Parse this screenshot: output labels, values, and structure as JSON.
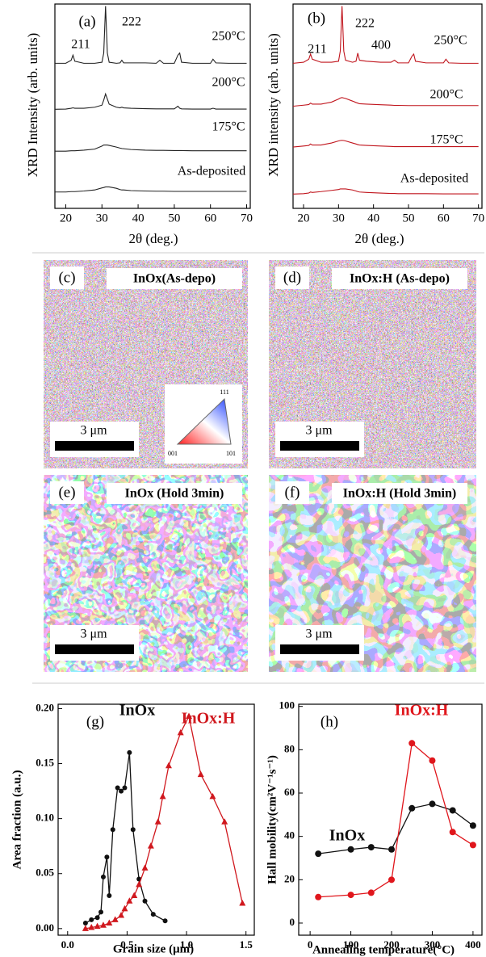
{
  "chart_data": [
    {
      "type": "line",
      "panel_label": "(a)",
      "xlabel": "2θ (deg.)",
      "ylabel": "XRD Intensity (arb. units)",
      "peak_labels": [
        "211",
        "222"
      ],
      "xlim": [
        17,
        71
      ],
      "xticks": [
        20,
        30,
        40,
        50,
        60,
        70
      ],
      "ylim": [
        0,
        10
      ],
      "x": [
        17,
        20,
        21.5,
        22,
        22.5,
        25,
        28,
        30,
        30.5,
        31,
        31.5,
        32,
        34,
        35,
        35.5,
        36,
        38,
        42,
        45,
        46,
        47,
        50,
        51,
        51.5,
        52,
        55,
        60,
        60.7,
        61.5,
        65,
        70
      ],
      "series": [
        {
          "name": "As-deposited",
          "color": "#222222",
          "values": [
            0.8,
            0.8,
            0.82,
            0.82,
            0.82,
            0.85,
            0.9,
            1.0,
            1.02,
            1.05,
            1.05,
            1.05,
            0.98,
            0.92,
            0.9,
            0.9,
            0.87,
            0.85,
            0.84,
            0.84,
            0.84,
            0.83,
            0.83,
            0.83,
            0.83,
            0.83,
            0.83,
            0.83,
            0.83,
            0.83,
            0.83
          ]
        },
        {
          "name": "175°C",
          "color": "#222222",
          "values": [
            2.8,
            2.8,
            2.82,
            2.82,
            2.82,
            2.85,
            2.9,
            3.05,
            3.1,
            3.1,
            3.1,
            3.08,
            3.0,
            2.95,
            2.93,
            2.92,
            2.88,
            2.85,
            2.84,
            2.84,
            2.84,
            2.83,
            2.83,
            2.83,
            2.83,
            2.82,
            2.82,
            2.82,
            2.82,
            2.82,
            2.82
          ]
        },
        {
          "name": "200°C",
          "color": "#222222",
          "values": [
            4.85,
            4.86,
            4.9,
            4.92,
            4.9,
            4.9,
            4.95,
            5.05,
            5.3,
            5.6,
            5.35,
            5.1,
            4.95,
            4.92,
            4.95,
            4.92,
            4.9,
            4.88,
            4.87,
            4.87,
            4.87,
            4.87,
            5.0,
            4.9,
            4.87,
            4.86,
            4.86,
            4.9,
            4.86,
            4.86,
            4.86
          ]
        },
        {
          "name": "250°C",
          "color": "#222222",
          "values": [
            7.1,
            7.1,
            7.25,
            7.5,
            7.2,
            7.1,
            7.1,
            7.15,
            7.6,
            9.9,
            7.6,
            7.15,
            7.1,
            7.12,
            7.25,
            7.12,
            7.12,
            7.12,
            7.1,
            7.25,
            7.1,
            7.1,
            7.5,
            7.6,
            7.15,
            7.1,
            7.1,
            7.3,
            7.12,
            7.1,
            7.1
          ]
        }
      ]
    },
    {
      "type": "line",
      "panel_label": "(b)",
      "xlabel": "2θ (deg.)",
      "ylabel": "XRD intensity (arb. units)",
      "peak_labels": [
        "211",
        "222",
        "400"
      ],
      "xlim": [
        17,
        71
      ],
      "xticks": [
        20,
        30,
        40,
        50,
        60,
        70
      ],
      "ylim": [
        0,
        10
      ],
      "x": [
        17,
        20,
        21.5,
        22,
        22.5,
        25,
        28,
        30,
        30.5,
        31,
        31.5,
        32,
        34,
        35,
        35.5,
        36,
        38,
        42,
        45,
        46,
        47,
        50,
        51,
        51.5,
        52,
        55,
        60,
        60.7,
        61.5,
        65,
        70
      ],
      "series": [
        {
          "name": "As-deposited",
          "color": "#c0141c",
          "values": [
            0.7,
            0.72,
            0.75,
            0.8,
            0.78,
            0.82,
            0.88,
            0.92,
            0.95,
            0.95,
            0.95,
            0.95,
            0.9,
            0.85,
            0.82,
            0.8,
            0.78,
            0.75,
            0.73,
            0.73,
            0.72,
            0.72,
            0.72,
            0.72,
            0.72,
            0.72,
            0.71,
            0.71,
            0.71,
            0.71,
            0.71
          ]
        },
        {
          "name": "175°C",
          "color": "#c0141c",
          "values": [
            3.0,
            3.05,
            3.08,
            3.15,
            3.1,
            3.1,
            3.2,
            3.3,
            3.32,
            3.33,
            3.32,
            3.3,
            3.2,
            3.15,
            3.12,
            3.1,
            3.08,
            3.05,
            3.03,
            3.02,
            3.02,
            3.02,
            3.02,
            3.02,
            3.02,
            3.02,
            3.02,
            3.02,
            3.02,
            3.02,
            3.02
          ]
        },
        {
          "name": "200°C",
          "color": "#c0141c",
          "values": [
            5.0,
            5.05,
            5.08,
            5.15,
            5.1,
            5.1,
            5.2,
            5.35,
            5.4,
            5.42,
            5.4,
            5.38,
            5.25,
            5.18,
            5.15,
            5.12,
            5.1,
            5.07,
            5.05,
            5.04,
            5.04,
            5.03,
            5.03,
            5.03,
            5.03,
            5.03,
            5.03,
            5.03,
            5.03,
            5.03,
            5.03
          ]
        },
        {
          "name": "250°C",
          "color": "#c0141c",
          "values": [
            7.1,
            7.15,
            7.3,
            7.55,
            7.3,
            7.15,
            7.15,
            7.2,
            7.7,
            9.9,
            7.7,
            7.25,
            7.15,
            7.2,
            7.6,
            7.25,
            7.2,
            7.15,
            7.15,
            7.25,
            7.12,
            7.12,
            7.45,
            7.55,
            7.2,
            7.12,
            7.12,
            7.3,
            7.12,
            7.1,
            7.1
          ]
        }
      ]
    },
    {
      "type": "line",
      "panel_label": "(g)",
      "xlabel": "Grain size (μm)",
      "ylabel": "Area fraction (a.u.)",
      "xlim": [
        -0.08,
        1.57
      ],
      "xticks": [
        {
          "value": 0,
          "label": "0.0"
        },
        {
          "value": 0.5,
          "label": "0.5"
        },
        {
          "value": 1,
          "label": "1.0"
        },
        {
          "value": 1.5,
          "label": "1.5"
        }
      ],
      "ylim": [
        -0.006,
        0.204
      ],
      "yticks": [
        {
          "value": 0,
          "label": "0.00"
        },
        {
          "value": 0.05,
          "label": "0.05"
        },
        {
          "value": 0.1,
          "label": "0.10"
        },
        {
          "value": 0.15,
          "label": "0.15"
        },
        {
          "value": 0.2,
          "label": "0.20"
        }
      ],
      "series": [
        {
          "name": "InOx",
          "color": "#111111",
          "marker": "circle",
          "x": [
            0.15,
            0.2,
            0.25,
            0.28,
            0.3,
            0.33,
            0.35,
            0.38,
            0.42,
            0.45,
            0.48,
            0.52,
            0.55,
            0.6,
            0.65,
            0.72,
            0.82
          ],
          "values": [
            0.005,
            0.008,
            0.01,
            0.015,
            0.047,
            0.065,
            0.03,
            0.09,
            0.128,
            0.125,
            0.128,
            0.16,
            0.09,
            0.045,
            0.025,
            0.013,
            0.007
          ]
        },
        {
          "name": "InOx:H",
          "color": "#d0181e",
          "marker": "triangle",
          "x": [
            0.15,
            0.2,
            0.25,
            0.3,
            0.35,
            0.4,
            0.45,
            0.48,
            0.52,
            0.56,
            0.6,
            0.65,
            0.7,
            0.76,
            0.8,
            0.85,
            0.95,
            1.02,
            1.12,
            1.22,
            1.32,
            1.47
          ],
          "values": [
            0.0,
            0.001,
            0.002,
            0.003,
            0.005,
            0.008,
            0.012,
            0.018,
            0.025,
            0.03,
            0.04,
            0.055,
            0.075,
            0.097,
            0.12,
            0.148,
            0.178,
            0.193,
            0.14,
            0.12,
            0.097,
            0.023
          ]
        }
      ]
    },
    {
      "type": "line",
      "panel_label": "(h)",
      "xlabel": "Annealing temperature(°C)",
      "ylabel": "Hall mobility(cm²V⁻¹s⁻¹)",
      "xlim": [
        -28,
        422
      ],
      "xticks": [
        0,
        100,
        200,
        300,
        400
      ],
      "ylim": [
        -5.6,
        101
      ],
      "yticks": [
        0,
        20,
        40,
        60,
        80,
        100
      ],
      "x": [
        20,
        100,
        150,
        200,
        250,
        300,
        350,
        400
      ],
      "series": [
        {
          "name": "InOx",
          "color": "#111111",
          "marker": "circle",
          "values": [
            32,
            34,
            35,
            34,
            53,
            55,
            52,
            45
          ]
        },
        {
          "name": "InOx:H",
          "color": "#e0161c",
          "marker": "circle",
          "values": [
            12,
            13,
            14,
            20,
            83,
            75,
            42,
            36
          ]
        }
      ]
    }
  ],
  "panels": [
    {
      "label": "(c)",
      "title": "InOx(As-depo)",
      "scale": "3 μm",
      "inset_labels": [
        "111",
        "001",
        "101"
      ]
    },
    {
      "label": "(d)",
      "title": "InOx:H (As-depo)",
      "scale": "3 μm"
    },
    {
      "label": "(e)",
      "title": "InOx (Hold 3min)",
      "scale": "3 μm"
    },
    {
      "label": "(f)",
      "title": "InOx:H (Hold 3min)",
      "scale": "3 μm"
    }
  ]
}
